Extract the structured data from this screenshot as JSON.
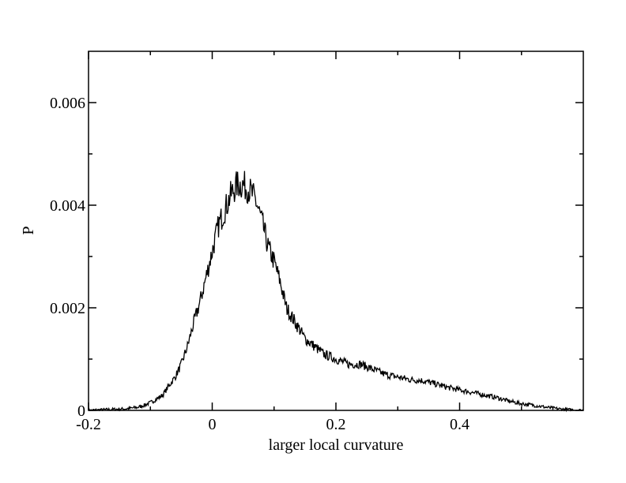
{
  "chart_data": {
    "type": "line",
    "title": "",
    "xlabel": "larger local curvature",
    "ylabel": "P",
    "xlim": [
      -0.2,
      0.6
    ],
    "ylim": [
      0,
      0.007
    ],
    "grid": false,
    "legend": "none",
    "line_color": "#000000",
    "x_ticks": [
      -0.2,
      0,
      0.2,
      0.4
    ],
    "x_tick_labels": [
      "-0.2",
      "0",
      "0.2",
      "0.4"
    ],
    "y_ticks": [
      0,
      0.002,
      0.004,
      0.006
    ],
    "y_tick_labels": [
      "0",
      "0.002",
      "0.004",
      "0.006"
    ],
    "series": [
      {
        "x": [
          -0.2,
          -0.18,
          -0.16,
          -0.14,
          -0.12,
          -0.11,
          -0.1,
          -0.09,
          -0.08,
          -0.07,
          -0.06,
          -0.05,
          -0.04,
          -0.03,
          -0.02,
          -0.01,
          0,
          0.01,
          0.02,
          0.03,
          0.04,
          0.05,
          0.06,
          0.07,
          0.08,
          0.09,
          0.1,
          0.11,
          0.12,
          0.13,
          0.14,
          0.15,
          0.16,
          0.18,
          0.2,
          0.22,
          0.24,
          0.26,
          0.28,
          0.3,
          0.32,
          0.34,
          0.36,
          0.38,
          0.4,
          0.42,
          0.44,
          0.46,
          0.48,
          0.5,
          0.52,
          0.54,
          0.56,
          0.58,
          0.6
        ],
        "y": [
          0.0,
          1e-05,
          2e-05,
          3e-05,
          6e-05,
          0.0001,
          0.00015,
          0.00022,
          0.0003,
          0.00048,
          0.00065,
          0.0009,
          0.00125,
          0.0017,
          0.0021,
          0.0026,
          0.0031,
          0.0036,
          0.0039,
          0.0042,
          0.0044,
          0.0044,
          0.0043,
          0.0041,
          0.0037,
          0.0032,
          0.0029,
          0.0025,
          0.002,
          0.0018,
          0.0016,
          0.0014,
          0.0013,
          0.0011,
          0.001,
          0.0009,
          0.0009,
          0.0008,
          0.0007,
          0.00065,
          0.0006,
          0.00058,
          0.00052,
          0.00045,
          0.0004,
          0.00035,
          0.0003,
          0.00025,
          0.00018,
          0.00013,
          0.0001,
          6e-05,
          3e-05,
          1e-05,
          0.0
        ]
      }
    ]
  }
}
